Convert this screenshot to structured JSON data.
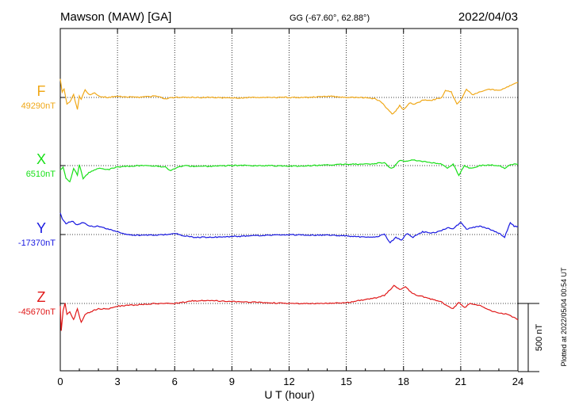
{
  "header": {
    "station": "Mawson (MAW)  [GA]",
    "coords": "GG (-67.60°,  62.88°)",
    "date": "2022/04/03"
  },
  "side_note": "Plotted at 2022/05/04 00:54 UT",
  "scale_bar_label": "500 nT",
  "chart_data": {
    "type": "line",
    "title": "Mawson (MAW)  [GA]",
    "xlabel": "U T (hour)",
    "ylabel": "",
    "xlim": [
      0,
      24
    ],
    "x_ticks": [
      "0",
      "3",
      "6",
      "9",
      "12",
      "15",
      "18",
      "21",
      "24"
    ],
    "grid": true,
    "scale_nT": 500,
    "series": [
      {
        "name": "F",
        "baseline_label": "49290nT",
        "baseline_nT": 49290,
        "color": "#f0a818",
        "x": [
          0,
          0.1,
          0.2,
          0.35,
          0.5,
          0.7,
          0.9,
          1.0,
          1.1,
          1.3,
          1.5,
          1.8,
          2.0,
          2.5,
          3.0,
          4.0,
          5.0,
          5.5,
          6.0,
          7.0,
          8.0,
          9.0,
          10.0,
          11.0,
          12.0,
          13.0,
          14.0,
          15.0,
          16.0,
          16.5,
          16.8,
          17.0,
          17.2,
          17.4,
          17.6,
          17.8,
          18.0,
          18.3,
          18.6,
          19.0,
          19.5,
          20.0,
          20.2,
          20.5,
          20.8,
          21.0,
          21.3,
          21.6,
          22.0,
          22.5,
          23.0,
          23.5,
          24.0
        ],
        "values": [
          140,
          40,
          60,
          -50,
          -30,
          20,
          -90,
          10,
          -10,
          60,
          20,
          30,
          10,
          0,
          10,
          0,
          10,
          -10,
          0,
          0,
          0,
          -5,
          0,
          0,
          0,
          0,
          10,
          0,
          0,
          -10,
          -30,
          -60,
          -90,
          -120,
          -100,
          -60,
          -90,
          -40,
          -50,
          -20,
          -20,
          0,
          50,
          40,
          -50,
          -20,
          60,
          20,
          40,
          60,
          50,
          80,
          110
        ]
      },
      {
        "name": "X",
        "baseline_label": "6510nT",
        "baseline_nT": 6510,
        "color": "#18e018",
        "x": [
          0,
          0.15,
          0.3,
          0.5,
          0.7,
          0.9,
          1.0,
          1.2,
          1.5,
          2.0,
          2.5,
          3.0,
          4.0,
          5.0,
          5.5,
          5.8,
          6.0,
          6.5,
          7.0,
          8.0,
          9.0,
          10.0,
          11.0,
          12.0,
          13.0,
          14.0,
          15.0,
          16.0,
          17.0,
          17.3,
          17.5,
          17.8,
          18.0,
          18.5,
          19.0,
          19.5,
          20.0,
          20.3,
          20.6,
          20.9,
          21.2,
          21.5,
          22.0,
          22.5,
          23.0,
          23.3,
          23.6,
          24.0
        ],
        "values": [
          -30,
          -10,
          -90,
          -120,
          -20,
          -70,
          10,
          -100,
          -50,
          -20,
          -30,
          -10,
          0,
          -5,
          -10,
          -40,
          -20,
          0,
          -5,
          -5,
          0,
          0,
          0,
          -5,
          0,
          5,
          10,
          10,
          20,
          -20,
          -10,
          40,
          30,
          40,
          30,
          20,
          10,
          -20,
          10,
          -70,
          0,
          -20,
          0,
          5,
          0,
          -20,
          10,
          10
        ]
      },
      {
        "name": "Y",
        "baseline_label": "-17370nT",
        "baseline_nT": -17370,
        "color": "#1818e0",
        "x": [
          0,
          0.1,
          0.3,
          0.6,
          0.9,
          1.2,
          1.5,
          2.0,
          2.5,
          3.0,
          3.5,
          4.0,
          4.5,
          5.0,
          5.5,
          6.0,
          6.5,
          7.0,
          7.5,
          8.0,
          9.0,
          10.0,
          11.0,
          12.0,
          13.0,
          14.0,
          15.0,
          16.0,
          16.5,
          17.0,
          17.3,
          17.6,
          17.9,
          18.2,
          18.5,
          19.0,
          19.5,
          20.0,
          20.3,
          20.6,
          21.0,
          21.3,
          21.6,
          22.0,
          22.5,
          23.0,
          23.3,
          23.6,
          23.8,
          24.0
        ],
        "values": [
          160,
          120,
          80,
          100,
          70,
          90,
          60,
          60,
          40,
          20,
          0,
          -5,
          -5,
          -5,
          0,
          10,
          -10,
          -20,
          -20,
          -20,
          -15,
          -10,
          -5,
          0,
          -5,
          -5,
          -10,
          -20,
          -20,
          0,
          -60,
          -20,
          -40,
          10,
          -20,
          20,
          10,
          30,
          50,
          40,
          90,
          40,
          50,
          60,
          40,
          10,
          -20,
          90,
          60,
          60
        ]
      },
      {
        "name": "Z",
        "baseline_label": "-45670nT",
        "baseline_nT": -45670,
        "color": "#e01818",
        "x": [
          0,
          0.05,
          0.15,
          0.25,
          0.35,
          0.5,
          0.7,
          0.9,
          1.1,
          1.3,
          1.6,
          2.0,
          2.5,
          3.0,
          4.0,
          5.0,
          6.0,
          7.0,
          8.0,
          9.0,
          10.0,
          11.0,
          12.0,
          13.0,
          14.0,
          15.0,
          16.0,
          16.5,
          17.0,
          17.5,
          17.8,
          18.1,
          18.5,
          19.0,
          19.5,
          20.0,
          20.3,
          20.6,
          20.9,
          21.2,
          21.5,
          21.8,
          22.1,
          22.5,
          23.0,
          23.5,
          24.0
        ],
        "values": [
          -20,
          -200,
          -50,
          0,
          -80,
          -60,
          -120,
          -40,
          -140,
          -80,
          -60,
          -40,
          -40,
          -20,
          -10,
          0,
          0,
          20,
          20,
          15,
          10,
          5,
          0,
          0,
          0,
          5,
          30,
          40,
          60,
          130,
          100,
          120,
          70,
          50,
          30,
          10,
          -20,
          -40,
          10,
          -30,
          0,
          -10,
          -20,
          -50,
          -70,
          -80,
          -120
        ]
      }
    ]
  }
}
